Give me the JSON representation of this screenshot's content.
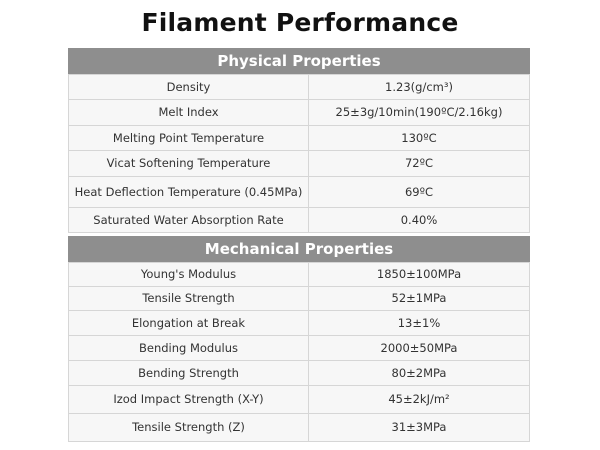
{
  "title": "Filament Performance",
  "physical": {
    "header": "Physical Properties",
    "rows": [
      {
        "property": "Density",
        "value": "1.23(g/cm³)"
      },
      {
        "property": "Melt Index",
        "value": "25±3g/10min(190ºC/2.16kg)"
      },
      {
        "property": "Melting Point Temperature",
        "value": "130ºC"
      },
      {
        "property": "Vicat Softening Temperature",
        "value": "72ºC"
      },
      {
        "property": "Heat Deflection Temperature (0.45MPa)",
        "value": "69ºC"
      },
      {
        "property": "Saturated Water Absorption Rate",
        "value": "0.40%"
      }
    ]
  },
  "mechanical": {
    "header": "Mechanical Properties",
    "rows": [
      {
        "property": "Young's Modulus",
        "value": "1850±100MPa"
      },
      {
        "property": "Tensile Strength",
        "value": "52±1MPa"
      },
      {
        "property": "Elongation at Break",
        "value": "13±1%"
      },
      {
        "property": "Bending Modulus",
        "value": "2000±50MPa"
      },
      {
        "property": "Bending Strength",
        "value": "80±2MPa"
      },
      {
        "property": "Izod Impact Strength (X-Y)",
        "value": "45±2kJ/m²"
      },
      {
        "property": "Tensile Strength (Z)",
        "value": "31±3MPa"
      }
    ]
  },
  "colors": {
    "header_bg": "#8e8e8e",
    "row_bg": "#f7f7f7",
    "border": "#d6d6d6"
  }
}
